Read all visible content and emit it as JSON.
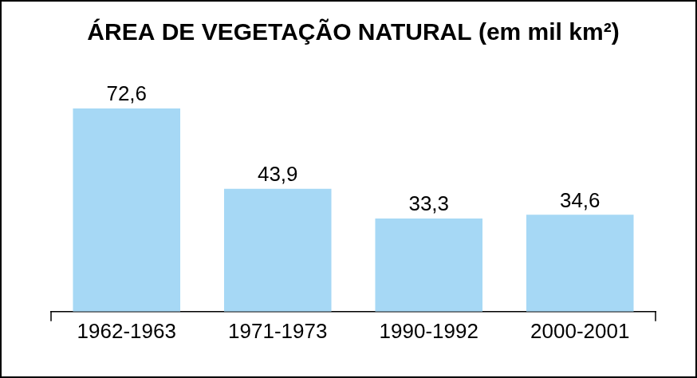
{
  "chart_data": {
    "type": "bar",
    "title": "ÁREA DE VEGETAÇÃO NATURAL (em mil km²)",
    "categories": [
      "1962-1963",
      "1971-1973",
      "1990-1992",
      "2000-2001"
    ],
    "values": [
      72.6,
      43.9,
      33.3,
      34.6
    ],
    "value_labels": [
      "72,6",
      "43,9",
      "33,3",
      "34,6"
    ],
    "color": "#a6d8f5",
    "data_labels": true,
    "tick_labels": "x",
    "grid": false
  }
}
